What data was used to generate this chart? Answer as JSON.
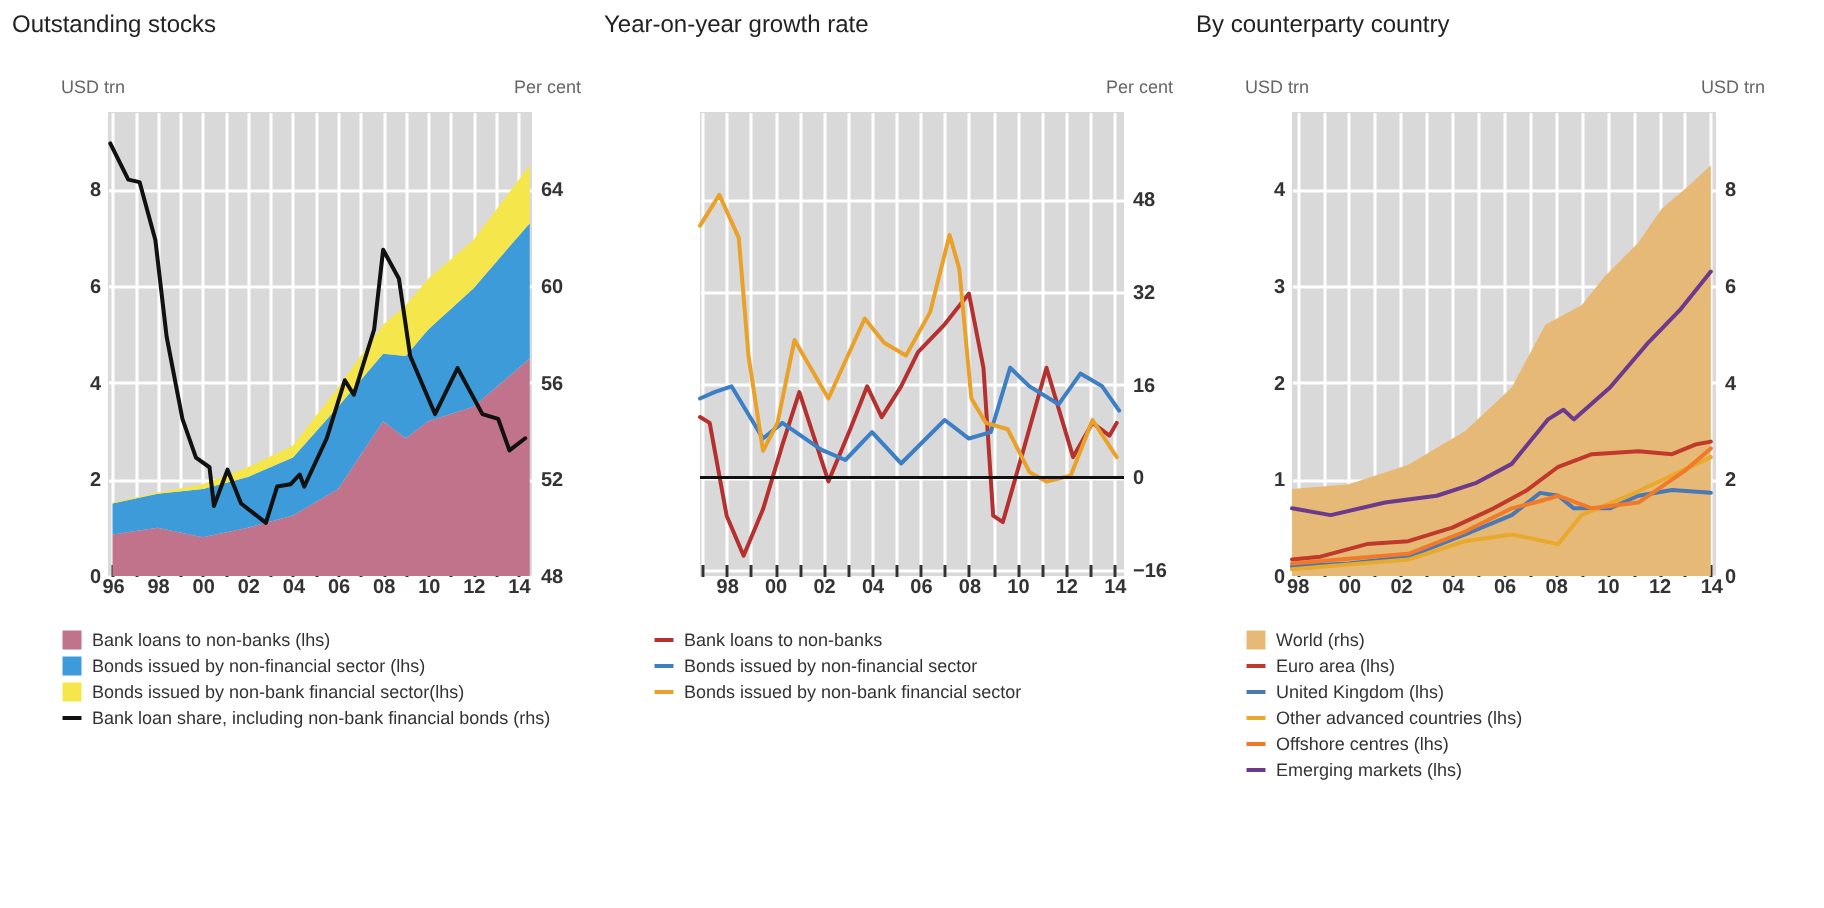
{
  "chart_data": [
    {
      "type": "area",
      "title": "Outstanding stocks",
      "ylabel": "USD trn",
      "y2label": "Per cent",
      "stacked": true,
      "grid": true,
      "legend": "bottom",
      "x": [
        1996,
        1998,
        2000,
        2002,
        2004,
        2006,
        2008,
        2009,
        2010,
        2012,
        2014.5
      ],
      "xlim": [
        1995.8,
        2014.6
      ],
      "xticks": [
        {
          "value": 1996,
          "label": "96"
        },
        {
          "value": 1997,
          "label": null
        },
        {
          "value": 1998,
          "label": "98"
        },
        {
          "value": 1999,
          "label": null
        },
        {
          "value": 2000,
          "label": "00"
        },
        {
          "value": 2001,
          "label": null
        },
        {
          "value": 2002,
          "label": "02"
        },
        {
          "value": 2003,
          "label": null
        },
        {
          "value": 2004,
          "label": "04"
        },
        {
          "value": 2005,
          "label": null
        },
        {
          "value": 2006,
          "label": "06"
        },
        {
          "value": 2007,
          "label": null
        },
        {
          "value": 2008,
          "label": "08"
        },
        {
          "value": 2009,
          "label": null
        },
        {
          "value": 2010,
          "label": "10"
        },
        {
          "value": 2011,
          "label": null
        },
        {
          "value": 2012,
          "label": "12"
        },
        {
          "value": 2013,
          "label": null
        },
        {
          "value": 2014,
          "label": "14"
        }
      ],
      "ylim": [
        0,
        9.6
      ],
      "yticks": [
        0,
        2,
        4,
        6,
        8
      ],
      "y2lim": [
        48,
        67.2
      ],
      "y2ticks": [
        48,
        52,
        56,
        60,
        64
      ],
      "series": [
        {
          "name": "Bank loans to non-banks (lhs)",
          "color": "#c0738a",
          "values": [
            0.86,
            1.0,
            0.8,
            1.0,
            1.25,
            1.8,
            3.2,
            2.85,
            3.2,
            3.5,
            4.5
          ]
        },
        {
          "name": "Bonds issued by non-financial sector (lhs)",
          "color": "#3d9bd9",
          "values": [
            0.64,
            0.7,
            1.0,
            1.05,
            1.2,
            1.7,
            1.4,
            1.7,
            1.9,
            2.45,
            2.8
          ]
        },
        {
          "name": "Bonds issued by non-bank financial sector(lhs)",
          "color": "#f5e64c",
          "values": [
            0.02,
            0.03,
            0.1,
            0.2,
            0.25,
            0.4,
            0.6,
            1.05,
            1.05,
            1.0,
            1.2
          ]
        },
        {
          "name": "Bank loan share, including non-bank financial bonds (rhs)",
          "color": "#111111",
          "type": "line",
          "axis": "y2",
          "x": [
            1995.9,
            1996.7,
            1997.2,
            1997.9,
            1998.4,
            1999.1,
            1999.7,
            2000.3,
            2000.5,
            2001.1,
            2001.7,
            2002.8,
            2003.3,
            2003.9,
            2004.3,
            2004.5,
            2005.5,
            2006.3,
            2006.7,
            2007.6,
            2008.0,
            2008.7,
            2009.2,
            2010.3,
            2011.3,
            2012.4,
            2013.1,
            2013.6,
            2014.3
          ],
          "values": [
            65.9,
            64.4,
            64.3,
            61.9,
            57.9,
            54.5,
            52.9,
            52.5,
            50.9,
            52.4,
            51.0,
            50.2,
            51.7,
            51.8,
            52.2,
            51.7,
            53.7,
            56.1,
            55.5,
            58.2,
            61.5,
            60.3,
            57.1,
            54.7,
            56.6,
            54.7,
            54.5,
            53.2,
            53.7
          ]
        }
      ]
    },
    {
      "type": "line",
      "title": "Year-on-year growth rate",
      "y2label": "Per cent",
      "grid": true,
      "legend": "bottom",
      "xlim": [
        1996.9,
        2014.4
      ],
      "xticks": [
        {
          "value": 1997,
          "label": null
        },
        {
          "value": 1998,
          "label": "98"
        },
        {
          "value": 1999,
          "label": null
        },
        {
          "value": 2000,
          "label": "00"
        },
        {
          "value": 2001,
          "label": null
        },
        {
          "value": 2002,
          "label": "02"
        },
        {
          "value": 2003,
          "label": null
        },
        {
          "value": 2004,
          "label": "04"
        },
        {
          "value": 2005,
          "label": null
        },
        {
          "value": 2006,
          "label": "06"
        },
        {
          "value": 2007,
          "label": null
        },
        {
          "value": 2008,
          "label": "08"
        },
        {
          "value": 2009,
          "label": null
        },
        {
          "value": 2010,
          "label": "10"
        },
        {
          "value": 2011,
          "label": null
        },
        {
          "value": 2012,
          "label": "12"
        },
        {
          "value": 2013,
          "label": null
        },
        {
          "value": 2014,
          "label": "14"
        }
      ],
      "y2lim": [
        -17,
        63
      ],
      "y2ticks": [
        -16,
        0,
        16,
        32,
        48
      ],
      "ref_lines": [
        {
          "axis": "y2",
          "value": 0,
          "color": "#111111"
        }
      ],
      "series": [
        {
          "name": "Bank loans to non-banks",
          "color": "#b5312f",
          "axis": "y2",
          "x": [
            1996.9,
            1997.3,
            1998.0,
            1998.7,
            1999.5,
            2000.3,
            2001.0,
            2002.2,
            2003.1,
            2003.8,
            2004.4,
            2005.2,
            2005.9,
            2007.0,
            2008.0,
            2008.6,
            2009.0,
            2009.4,
            2010.2,
            2011.2,
            2012.3,
            2013.1,
            2013.8,
            2014.1
          ],
          "values": [
            10.4,
            9.4,
            -6.6,
            -13.5,
            -5.5,
            5.6,
            14.7,
            -0.7,
            8.3,
            15.7,
            10.4,
            15.7,
            21.6,
            26.4,
            31.7,
            18.9,
            -6.6,
            -7.7,
            4,
            18.9,
            3.5,
            9.4,
            7.2,
            9.4
          ]
        },
        {
          "name": "Bonds issued by non-financial sector",
          "color": "#3d7fc4",
          "axis": "y2",
          "x": [
            1996.9,
            1997.5,
            1998.2,
            1999.5,
            2000.3,
            2001.9,
            2002.9,
            2004.0,
            2005.2,
            2007.0,
            2008.0,
            2008.9,
            2009.7,
            2010.5,
            2011.7,
            2012.6,
            2013.5,
            2014.2
          ],
          "values": [
            13.6,
            14.7,
            15.7,
            6.7,
            9.4,
            4.8,
            3,
            7.8,
            2.4,
            9.9,
            6.7,
            7.8,
            18.9,
            15.7,
            12.6,
            17.9,
            15.7,
            11.5
          ]
        },
        {
          "name": "Bonds issued by non-bank financial sector",
          "color": "#eaa12a",
          "axis": "y2",
          "x": [
            1996.9,
            1997.7,
            1998.5,
            1998.9,
            1999.5,
            2000.1,
            2000.8,
            2002.2,
            2003.7,
            2004.5,
            2005.4,
            2006.4,
            2007.2,
            2007.6,
            2008.1,
            2008.7,
            2009.6,
            2010.5,
            2011.2,
            2012.2,
            2013.1,
            2014.1
          ],
          "values": [
            43.4,
            48.7,
            41.3,
            21,
            4.6,
            9.4,
            23.7,
            13.6,
            27.4,
            23.2,
            21,
            28.5,
            41.8,
            36,
            13.6,
            9.4,
            8.3,
            0.9,
            -0.7,
            0.3,
            9.9,
            3.5
          ]
        }
      ]
    },
    {
      "type": "line",
      "title": "By counterparty country",
      "ylabel": "USD trn",
      "y2label": "USD trn",
      "grid": true,
      "legend": "bottom",
      "xlim": [
        1997.8,
        2014.2
      ],
      "xticks": [
        {
          "value": 1998,
          "label": "98"
        },
        {
          "value": 1999,
          "label": null
        },
        {
          "value": 2000,
          "label": "00"
        },
        {
          "value": 2001,
          "label": null
        },
        {
          "value": 2002,
          "label": "02"
        },
        {
          "value": 2003,
          "label": null
        },
        {
          "value": 2004,
          "label": "04"
        },
        {
          "value": 2005,
          "label": null
        },
        {
          "value": 2006,
          "label": "06"
        },
        {
          "value": 2007,
          "label": null
        },
        {
          "value": 2008,
          "label": "08"
        },
        {
          "value": 2009,
          "label": null
        },
        {
          "value": 2010,
          "label": "10"
        },
        {
          "value": 2011,
          "label": null
        },
        {
          "value": 2012,
          "label": "12"
        },
        {
          "value": 2013,
          "label": null
        },
        {
          "value": 2014,
          "label": "14"
        }
      ],
      "ylim": [
        0,
        4.8
      ],
      "yticks": [
        0,
        1,
        2,
        3,
        4
      ],
      "y2lim": [
        0,
        9.6
      ],
      "y2ticks": [
        0,
        2,
        4,
        6,
        8
      ],
      "series": [
        {
          "name": "World (rhs)",
          "color": "#e6b977",
          "type": "area",
          "axis": "y2",
          "x": [
            1997.8,
            2000.0,
            2002.3,
            2004.5,
            2006.3,
            2007.6,
            2008.3,
            2009.0,
            2009.9,
            2011.2,
            2012.1,
            2013.2,
            2014.0
          ],
          "values": [
            1.8,
            1.9,
            2.3,
            3.0,
            3.9,
            5.2,
            5.4,
            5.6,
            6.2,
            6.9,
            7.6,
            8.1,
            8.5
          ]
        },
        {
          "name": "Euro area (lhs)",
          "color": "#c0392b",
          "x": [
            1997.8,
            1998.9,
            2000.7,
            2002.3,
            2004.0,
            2005.6,
            2006.9,
            2008.1,
            2009.4,
            2011.2,
            2012.5,
            2013.4,
            2014.0
          ],
          "values": [
            0.17,
            0.2,
            0.33,
            0.36,
            0.5,
            0.7,
            0.89,
            1.13,
            1.26,
            1.29,
            1.26,
            1.36,
            1.39
          ]
        },
        {
          "name": "United Kingdom (lhs)",
          "color": "#4a78b5",
          "x": [
            1997.8,
            2000.0,
            2002.3,
            2004.5,
            2006.3,
            2007.4,
            2008.1,
            2008.7,
            2010.1,
            2011.2,
            2012.5,
            2014.0
          ],
          "values": [
            0.1,
            0.13,
            0.2,
            0.43,
            0.63,
            0.86,
            0.83,
            0.7,
            0.7,
            0.83,
            0.89,
            0.86
          ]
        },
        {
          "name": "Other advanced countries (lhs)",
          "color": "#e8a92d",
          "x": [
            1997.8,
            2002.3,
            2004.5,
            2006.3,
            2008.1,
            2009.0,
            2010.8,
            2012.1,
            2014.0
          ],
          "values": [
            0.07,
            0.17,
            0.36,
            0.43,
            0.33,
            0.63,
            0.83,
            0.99,
            1.23
          ]
        },
        {
          "name": "Offshore centres (lhs)",
          "color": "#f07a2a",
          "x": [
            1997.8,
            2002.3,
            2004.5,
            2006.3,
            2007.2,
            2008.1,
            2009.4,
            2011.2,
            2013.0,
            2014.0
          ],
          "values": [
            0.13,
            0.23,
            0.46,
            0.7,
            0.76,
            0.83,
            0.7,
            0.76,
            1.09,
            1.32
          ]
        },
        {
          "name": "Emerging markets (lhs)",
          "color": "#6b3a8c",
          "x": [
            1997.8,
            1999.3,
            2001.4,
            2003.4,
            2004.9,
            2006.3,
            2007.7,
            2008.3,
            2008.7,
            2010.1,
            2011.6,
            2012.8,
            2014.0
          ],
          "values": [
            0.7,
            0.63,
            0.76,
            0.83,
            0.96,
            1.16,
            1.62,
            1.72,
            1.62,
            1.95,
            2.42,
            2.75,
            3.15
          ]
        }
      ]
    }
  ]
}
